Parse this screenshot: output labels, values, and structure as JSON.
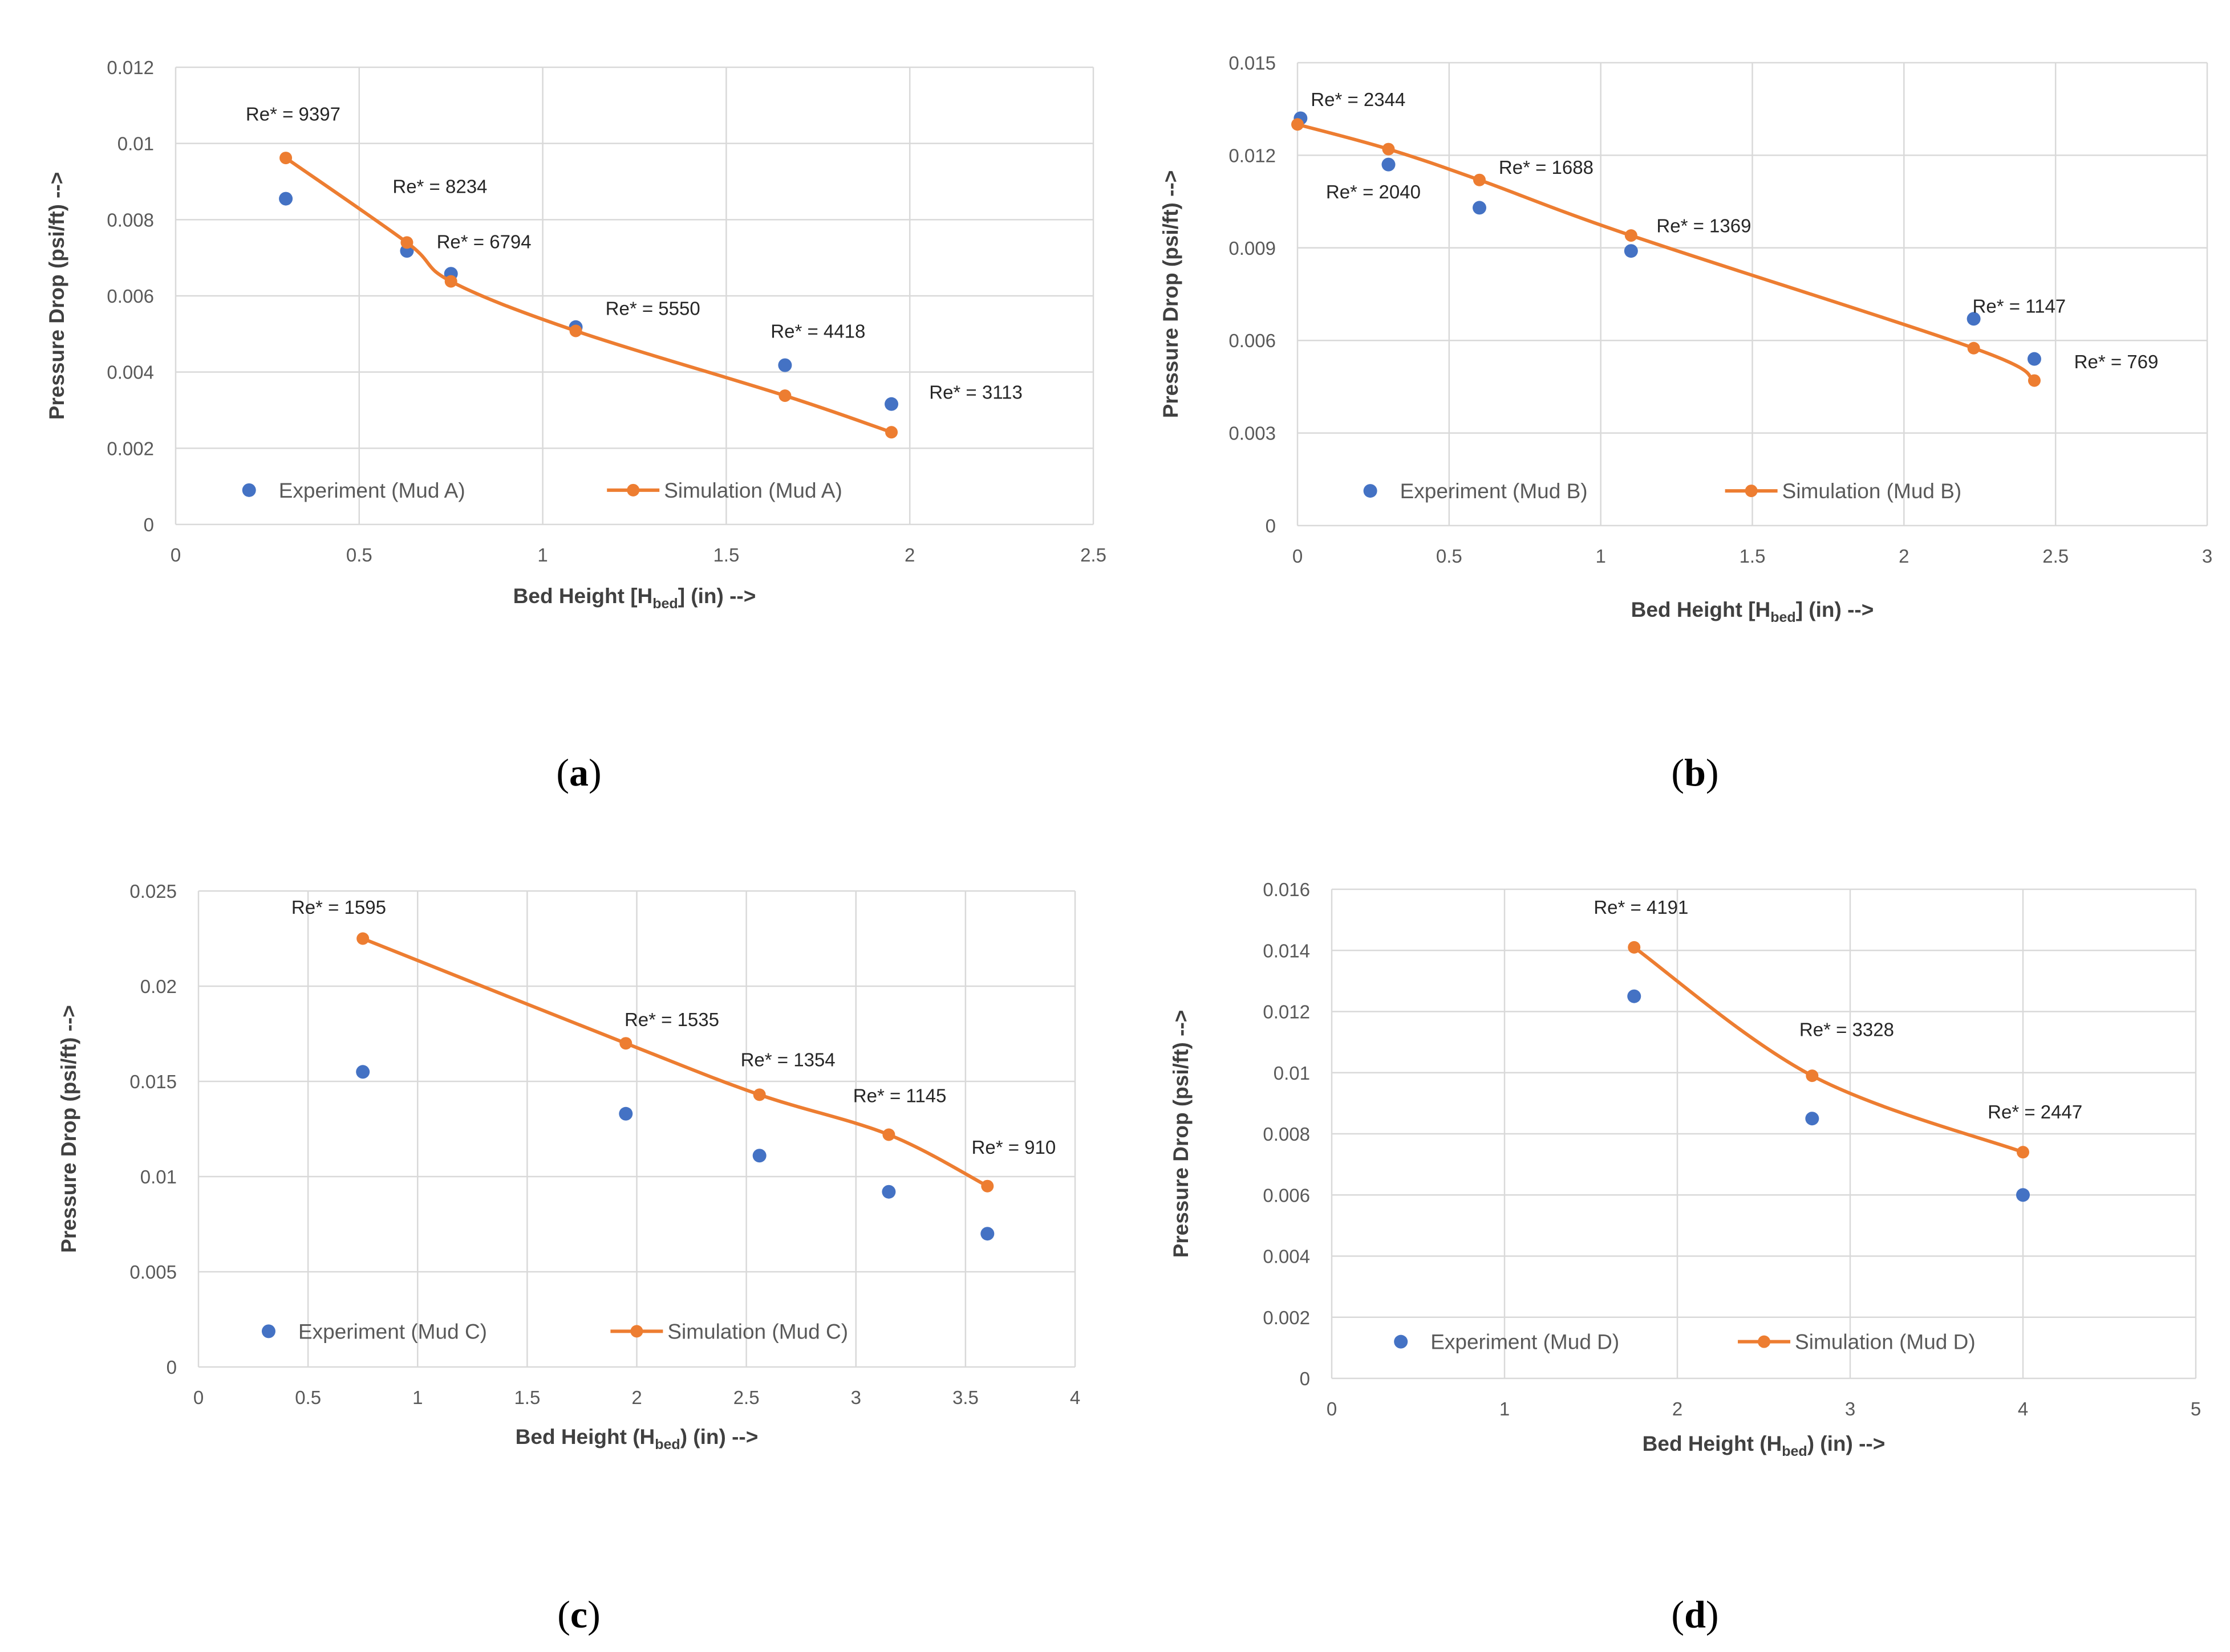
{
  "chart_data": [
    {
      "type": "scatter",
      "panel_label": "a",
      "ylabel": "Pressure Drop (psi/ft) -->",
      "xlabel": {
        "prefix": "Bed Height [H",
        "sub": "bed",
        "suffix": "] (in) -->"
      },
      "xlim": [
        0,
        2.5
      ],
      "ylim": [
        0,
        0.012
      ],
      "xticks": [
        "0",
        "0.5",
        "1",
        "1.5",
        "2",
        "2.5"
      ],
      "yticks": [
        "0",
        "0.002",
        "0.004",
        "0.006",
        "0.008",
        "0.01",
        "0.012"
      ],
      "grid": true,
      "legend_position": "bottom-left-inside",
      "series": [
        {
          "name": "Experiment (Mud A)",
          "kind": "points",
          "color": "#4472C4",
          "x": [
            0.3,
            0.63,
            0.75,
            1.09,
            1.66,
            1.95
          ],
          "y": [
            0.00855,
            0.00718,
            0.00658,
            0.00518,
            0.00418,
            0.00316
          ]
        },
        {
          "name": "Simulation (Mud A)",
          "kind": "line",
          "color": "#ED7D31",
          "x": [
            0.3,
            0.63,
            0.75,
            1.09,
            1.66,
            1.95
          ],
          "y": [
            0.00962,
            0.0074,
            0.00638,
            0.00508,
            0.00338,
            0.00242
          ]
        }
      ],
      "annotations": [
        {
          "text": "Re* = 9397",
          "x": 0.32,
          "y": 0.0106
        },
        {
          "text": "Re* = 8234",
          "x": 0.72,
          "y": 0.0087
        },
        {
          "text": "Re* = 6794",
          "x": 0.84,
          "y": 0.00725
        },
        {
          "text": "Re* = 5550",
          "x": 1.3,
          "y": 0.0055
        },
        {
          "text": "Re* = 4418",
          "x": 1.75,
          "y": 0.0049
        },
        {
          "text": "Re* = 3113",
          "x": 2.18,
          "y": 0.0033
        }
      ]
    },
    {
      "type": "scatter",
      "panel_label": "b",
      "ylabel": "Pressure Drop (psi/ft) -->",
      "xlabel": {
        "prefix": "Bed Height [H",
        "sub": "bed",
        "suffix": "] (in) -->"
      },
      "xlim": [
        0,
        3
      ],
      "ylim": [
        0,
        0.015
      ],
      "xticks": [
        "0",
        "0.5",
        "1",
        "1.5",
        "2",
        "2.5",
        "3"
      ],
      "yticks": [
        "0",
        "0.003",
        "0.006",
        "0.009",
        "0.012",
        "0.015"
      ],
      "grid": true,
      "legend_position": "bottom-left-inside",
      "series": [
        {
          "name": "Experiment (Mud B)",
          "kind": "points",
          "color": "#4472C4",
          "x": [
            0.01,
            0.3,
            0.6,
            1.1,
            2.23,
            2.43
          ],
          "y": [
            0.0132,
            0.0117,
            0.0103,
            0.0089,
            0.0067,
            0.0054
          ]
        },
        {
          "name": "Simulation (Mud B)",
          "kind": "line",
          "color": "#ED7D31",
          "x": [
            0.0,
            0.3,
            0.6,
            1.1,
            2.23,
            2.43
          ],
          "y": [
            0.013,
            0.0122,
            0.0112,
            0.0094,
            0.00575,
            0.0047
          ]
        }
      ],
      "annotations": [
        {
          "text": "Re* = 2344",
          "x": 0.2,
          "y": 0.0136
        },
        {
          "text": "Re* = 2040",
          "x": 0.25,
          "y": 0.0106
        },
        {
          "text": "Re* = 1688",
          "x": 0.82,
          "y": 0.0114
        },
        {
          "text": "Re* = 1369",
          "x": 1.34,
          "y": 0.0095
        },
        {
          "text": "Re* = 1147",
          "x": 2.38,
          "y": 0.0069
        },
        {
          "text": "Re* = 769",
          "x": 2.7,
          "y": 0.0051
        }
      ]
    },
    {
      "type": "scatter",
      "panel_label": "c",
      "ylabel": "Pressure Drop (psi/ft) -->",
      "xlabel": {
        "prefix": "Bed Height (H",
        "sub": "bed",
        "suffix": ") (in) -->"
      },
      "xlim": [
        0,
        4
      ],
      "ylim": [
        0,
        0.025
      ],
      "xticks": [
        "0",
        "0.5",
        "1",
        "1.5",
        "2",
        "2.5",
        "3",
        "3.5",
        "4"
      ],
      "yticks": [
        "0",
        "0.005",
        "0.01",
        "0.015",
        "0.02",
        "0.025"
      ],
      "grid": true,
      "legend_position": "bottom-left-inside",
      "series": [
        {
          "name": "Experiment (Mud C)",
          "kind": "points",
          "color": "#4472C4",
          "x": [
            0.75,
            1.95,
            2.56,
            3.15,
            3.6
          ],
          "y": [
            0.0155,
            0.0133,
            0.0111,
            0.0092,
            0.007
          ]
        },
        {
          "name": "Simulation (Mud C)",
          "kind": "line",
          "color": "#ED7D31",
          "x": [
            0.75,
            1.95,
            2.56,
            3.15,
            3.6
          ],
          "y": [
            0.0225,
            0.017,
            0.0143,
            0.0122,
            0.0095
          ]
        }
      ],
      "annotations": [
        {
          "text": "Re* = 1595",
          "x": 0.64,
          "y": 0.0238
        },
        {
          "text": "Re* = 1535",
          "x": 2.16,
          "y": 0.0179
        },
        {
          "text": "Re* = 1354",
          "x": 2.69,
          "y": 0.0158
        },
        {
          "text": "Re* = 1145",
          "x": 3.2,
          "y": 0.0139
        },
        {
          "text": "Re* = 910",
          "x": 3.72,
          "y": 0.0112
        }
      ]
    },
    {
      "type": "scatter",
      "panel_label": "d",
      "ylabel": "Pressure Drop (psi/ft) -->",
      "xlabel": {
        "prefix": "Bed Height (H",
        "sub": "bed",
        "suffix": ") (in) -->"
      },
      "xlim": [
        0,
        5
      ],
      "ylim": [
        0,
        0.016
      ],
      "xticks": [
        "0",
        "1",
        "2",
        "3",
        "4",
        "5"
      ],
      "yticks": [
        "0",
        "0.002",
        "0.004",
        "0.006",
        "0.008",
        "0.01",
        "0.012",
        "0.014",
        "0.016"
      ],
      "grid": true,
      "legend_position": "bottom-left-inside",
      "series": [
        {
          "name": "Experiment (Mud D)",
          "kind": "points",
          "color": "#4472C4",
          "x": [
            1.75,
            2.78,
            4.0
          ],
          "y": [
            0.0125,
            0.0085,
            0.006
          ]
        },
        {
          "name": "Simulation (Mud D)",
          "kind": "line",
          "color": "#ED7D31",
          "x": [
            1.75,
            2.78,
            4.0
          ],
          "y": [
            0.0141,
            0.0099,
            0.0074
          ]
        }
      ],
      "annotations": [
        {
          "text": "Re* = 4191",
          "x": 1.79,
          "y": 0.0152
        },
        {
          "text": "Re* = 3328",
          "x": 2.98,
          "y": 0.0112
        },
        {
          "text": "Re* = 2447",
          "x": 4.07,
          "y": 0.0085
        }
      ]
    }
  ]
}
